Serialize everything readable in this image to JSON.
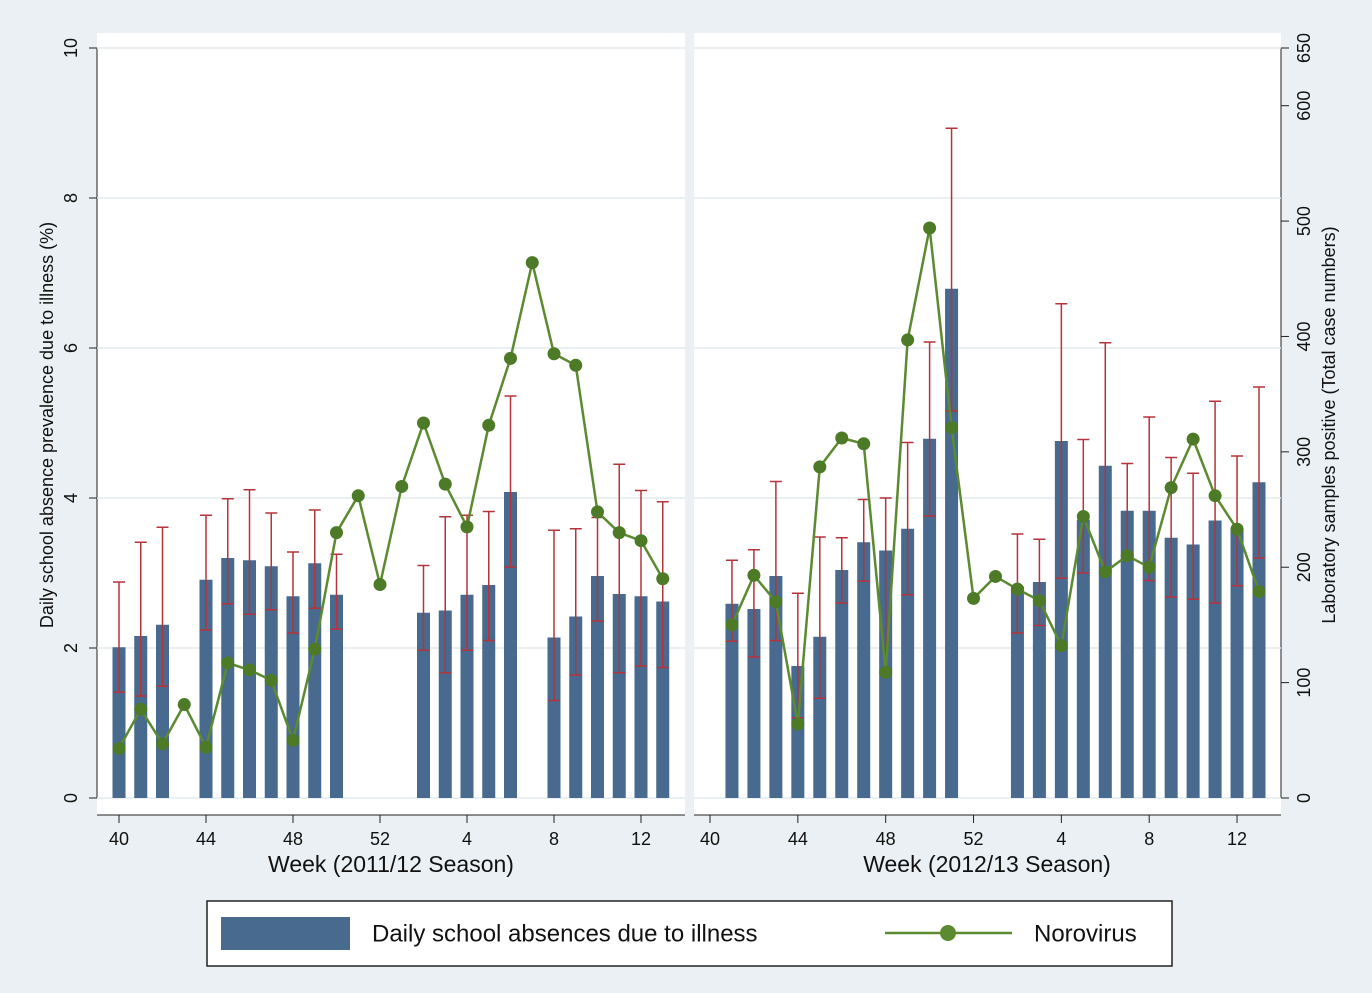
{
  "chart_data": [
    {
      "type": "bar",
      "xlabel": "Week (2011/12 Season)",
      "ylabel": "Daily school absence prevalence due to illness (%)",
      "categories": [
        40,
        null,
        null,
        null,
        44,
        null,
        null,
        null,
        48,
        null,
        null,
        null,
        52,
        null,
        null,
        null,
        4,
        null,
        null,
        null,
        8,
        null,
        null,
        null,
        12,
        null
      ],
      "ylim": [
        0,
        10
      ],
      "yticks": [
        0,
        2,
        4,
        6,
        8,
        10
      ],
      "y2lim": [
        0,
        650
      ],
      "grid": true,
      "series": [
        {
          "name": "Daily school absences due to illness",
          "color": "#476a8e",
          "error_color": "#b5333a",
          "values": [
            2.01,
            2.16,
            2.31,
            null,
            2.91,
            3.2,
            3.17,
            3.09,
            2.69,
            3.13,
            2.71,
            null,
            null,
            null,
            2.47,
            2.5,
            2.71,
            2.84,
            4.08,
            null,
            2.14,
            2.42,
            2.96,
            2.72,
            2.69,
            2.62
          ],
          "ci_low": [
            1.41,
            1.36,
            1.49,
            null,
            2.24,
            2.59,
            2.45,
            2.51,
            2.2,
            2.53,
            2.25,
            null,
            null,
            null,
            1.97,
            1.67,
            1.97,
            2.1,
            3.08,
            null,
            1.3,
            1.64,
            2.36,
            1.67,
            1.76,
            1.74
          ],
          "ci_high": [
            2.88,
            3.41,
            3.61,
            null,
            3.77,
            3.99,
            4.11,
            3.8,
            3.28,
            3.84,
            3.25,
            null,
            null,
            null,
            3.1,
            3.75,
            3.77,
            3.82,
            5.36,
            null,
            3.57,
            3.59,
            3.74,
            4.45,
            4.1,
            3.95
          ]
        },
        {
          "name": "Norovirus",
          "type": "line",
          "axis": "y2",
          "color": "#5b8a30",
          "values": [
            43,
            77,
            47,
            81,
            44,
            117,
            111,
            102,
            50,
            129,
            230,
            262,
            185,
            270,
            325,
            272,
            235,
            323,
            381,
            464,
            385,
            375,
            248,
            230,
            223,
            190
          ]
        }
      ]
    },
    {
      "type": "bar",
      "xlabel": "Week (2012/13 Season)",
      "y2label": "Laboratory samples positive (Total case numbers)",
      "categories": [
        40,
        null,
        null,
        null,
        44,
        null,
        null,
        null,
        48,
        null,
        null,
        null,
        52,
        null,
        null,
        null,
        4,
        null,
        null,
        null,
        8,
        null,
        null,
        null,
        12,
        null
      ],
      "ylim": [
        0,
        10
      ],
      "y2lim": [
        0,
        650
      ],
      "y2ticks": [
        0,
        100,
        200,
        300,
        400,
        500,
        600,
        650
      ],
      "series": [
        {
          "color": "#476a8e",
          "error_color": "#b5333a",
          "values": [
            null,
            2.59,
            2.52,
            2.96,
            1.76,
            2.15,
            3.04,
            3.41,
            3.3,
            3.59,
            4.79,
            6.79,
            null,
            null,
            2.82,
            2.88,
            4.76,
            3.71,
            4.43,
            3.83,
            3.83,
            3.47,
            3.38,
            3.7,
            3.59,
            4.21
          ],
          "ci_low": [
            null,
            2.09,
            1.88,
            2.1,
            1.07,
            1.33,
            2.6,
            2.89,
            1.71,
            2.71,
            3.76,
            5.16,
            null,
            null,
            2.2,
            2.3,
            2.93,
            3.0,
            3.05,
            3.2,
            2.9,
            2.68,
            2.65,
            2.6,
            2.83,
            3.2
          ],
          "ci_high": [
            null,
            3.17,
            3.31,
            4.22,
            2.73,
            3.48,
            3.47,
            3.98,
            4.0,
            4.74,
            6.08,
            8.93,
            null,
            null,
            3.52,
            3.45,
            6.59,
            4.78,
            6.07,
            4.46,
            5.08,
            4.54,
            4.33,
            5.29,
            4.56,
            5.48
          ]
        },
        {
          "type": "line",
          "axis": "y2",
          "color": "#5b8a30",
          "values": [
            null,
            150,
            193,
            170,
            64,
            287,
            312,
            307,
            109,
            397,
            494,
            321,
            173,
            192,
            181,
            171,
            132,
            244,
            196,
            210,
            200,
            269,
            311,
            262,
            233,
            179
          ]
        }
      ]
    }
  ]
}
